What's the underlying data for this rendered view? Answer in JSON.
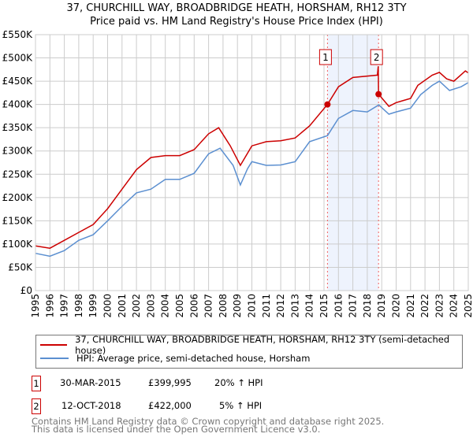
{
  "chart_data": {
    "type": "line",
    "title": "37, CHURCHILL WAY, BROADBRIDGE HEATH, HORSHAM, RH12 3TY",
    "subtitle": "Price paid vs. HM Land Registry's House Price Index (HPI)",
    "xlim": [
      1995,
      2025
    ],
    "ylim": [
      0,
      550000
    ],
    "grid": true,
    "x_ticks": [
      "1995",
      "1996",
      "1997",
      "1998",
      "1999",
      "2000",
      "2001",
      "2002",
      "2003",
      "2004",
      "2005",
      "2006",
      "2007",
      "2008",
      "2009",
      "2010",
      "2011",
      "2012",
      "2013",
      "2014",
      "2015",
      "2016",
      "2017",
      "2018",
      "2019",
      "2020",
      "2021",
      "2022",
      "2023",
      "2024",
      "2025"
    ],
    "y_ticks": [
      {
        "v": 0,
        "label": "£0"
      },
      {
        "v": 50000,
        "label": "£50K"
      },
      {
        "v": 100000,
        "label": "£100K"
      },
      {
        "v": 150000,
        "label": "£150K"
      },
      {
        "v": 200000,
        "label": "£200K"
      },
      {
        "v": 250000,
        "label": "£250K"
      },
      {
        "v": 300000,
        "label": "£300K"
      },
      {
        "v": 350000,
        "label": "£350K"
      },
      {
        "v": 400000,
        "label": "£400K"
      },
      {
        "v": 450000,
        "label": "£450K"
      },
      {
        "v": 500000,
        "label": "£500K"
      },
      {
        "v": 550000,
        "label": "£550K"
      }
    ],
    "series": [
      {
        "name": "37, CHURCHILL WAY, BROADBRIDGE HEATH, HORSHAM, RH12 3TY (semi-detached house)",
        "color": "#cc0000",
        "x": [
          1995,
          1996,
          1997,
          1998,
          1999,
          2000,
          2001,
          2002,
          2003,
          2004,
          2005,
          2006,
          2007,
          2007.7,
          2008.5,
          2009.2,
          2009.6,
          2010,
          2011,
          2012,
          2013,
          2014,
          2015.24,
          2016,
          2017,
          2018.7,
          2018.76,
          2018.78,
          2019.5,
          2020,
          2021,
          2021.5,
          2022.5,
          2023,
          2023.5,
          2024,
          2024.8,
          2025
        ],
        "values": [
          96000,
          91000,
          108000,
          125000,
          142000,
          176000,
          218000,
          260000,
          286000,
          290000,
          290000,
          303000,
          337000,
          350000,
          311000,
          269000,
          290000,
          311000,
          320000,
          322000,
          328000,
          354000,
          399995,
          438000,
          458000,
          463000,
          482000,
          422000,
          396000,
          404000,
          413000,
          441000,
          463000,
          469000,
          455000,
          450000,
          472000,
          468000
        ]
      },
      {
        "name": "HPI: Average price, semi-detached house, Horsham",
        "color": "#5b8fd0",
        "x": [
          1995,
          1996,
          1997,
          1998,
          1999,
          2000,
          2001,
          2002,
          2003,
          2004,
          2005,
          2006,
          2007,
          2007.8,
          2008.7,
          2009.2,
          2009.7,
          2010,
          2011,
          2012,
          2013,
          2014,
          2015.24,
          2016,
          2017,
          2018,
          2018.8,
          2019.5,
          2020,
          2021,
          2021.7,
          2022.5,
          2023,
          2023.7,
          2024.5,
          2025
        ],
        "values": [
          80000,
          74000,
          86000,
          108000,
          120000,
          150000,
          181000,
          210000,
          218000,
          239000,
          239000,
          252000,
          294000,
          306000,
          269000,
          227000,
          262000,
          277000,
          269000,
          270000,
          277000,
          320000,
          333000,
          370000,
          387000,
          384000,
          399000,
          379000,
          384000,
          392000,
          421000,
          441000,
          450000,
          430000,
          438000,
          447000
        ]
      }
    ],
    "sales": [
      {
        "id": "1",
        "x": 2015.24,
        "date": "30-MAR-2015",
        "price": 399995,
        "price_label": "£399,995",
        "hpi": "20% ↑ HPI"
      },
      {
        "id": "2",
        "x": 2018.78,
        "date": "12-OCT-2018",
        "price": 422000,
        "price_label": "£422,000",
        "hpi": "5% ↑ HPI"
      }
    ]
  },
  "legend": {
    "property": "37, CHURCHILL WAY, BROADBRIDGE HEATH, HORSHAM, RH12 3TY (semi-detached house)",
    "hpi": "HPI: Average price, semi-detached house, Horsham"
  },
  "footer": {
    "line1": "Contains HM Land Registry data © Crown copyright and database right 2025.",
    "line2": "This data is licensed under the Open Government Licence v3.0."
  }
}
